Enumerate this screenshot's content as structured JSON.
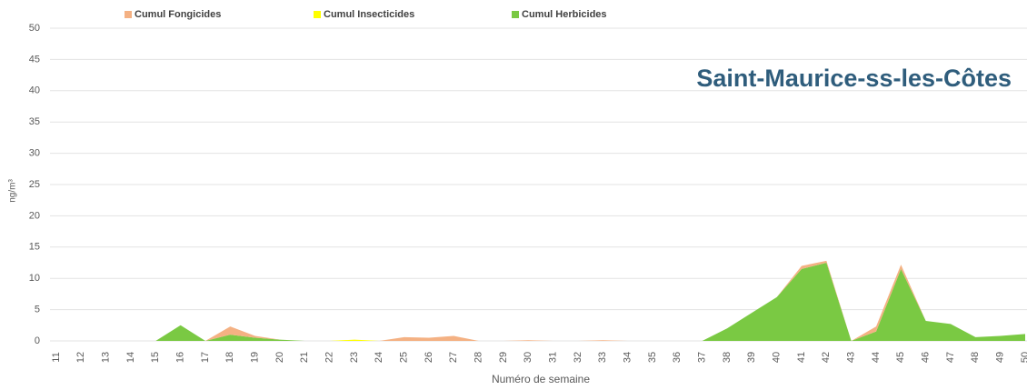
{
  "chart_data": {
    "type": "stacked_area",
    "annotation": "Saint-Maurice-ss-les-Côtes",
    "x_label": "Numéro de semaine",
    "y_label": "ng/m³",
    "categories": [
      "11",
      "12",
      "13",
      "14",
      "15",
      "16",
      "17",
      "18",
      "19",
      "20",
      "21",
      "22",
      "23",
      "24",
      "25",
      "26",
      "27",
      "28",
      "29",
      "30",
      "31",
      "32",
      "33",
      "34",
      "35",
      "36",
      "37",
      "38",
      "39",
      "40",
      "41",
      "42",
      "43",
      "44",
      "45",
      "46",
      "47",
      "48",
      "49",
      "50"
    ],
    "series": [
      {
        "name": "Cumul Fongicides",
        "color": "#f4b183",
        "values": [
          0,
          0,
          0,
          0,
          0,
          0,
          0,
          1.3,
          0.3,
          0,
          0,
          0,
          0,
          0,
          0.6,
          0.5,
          0.8,
          0,
          0,
          0.1,
          0,
          0,
          0.1,
          0,
          0,
          0,
          0,
          0,
          0,
          0,
          0.5,
          0.3,
          0,
          0.8,
          0.7,
          0,
          0,
          0,
          0,
          0
        ]
      },
      {
        "name": "Cumul Insecticides",
        "color": "#ffff00",
        "values": [
          0,
          0,
          0,
          0,
          0,
          0,
          0,
          0,
          0,
          0,
          0,
          0,
          0.2,
          0,
          0,
          0,
          0,
          0,
          0,
          0,
          0,
          0,
          0,
          0,
          0,
          0,
          0,
          0,
          0,
          0,
          0,
          0,
          0,
          0,
          0,
          0,
          0,
          0,
          0,
          0
        ]
      },
      {
        "name": "Cumul Herbicides",
        "color": "#7ac943",
        "values": [
          0,
          0,
          0,
          0,
          0,
          2.5,
          0,
          1,
          0.5,
          0.2,
          0,
          0,
          0,
          0,
          0,
          0,
          0,
          0,
          0,
          0,
          0,
          0,
          0,
          0,
          0,
          0,
          0,
          2,
          4.5,
          7,
          11.5,
          12.5,
          0,
          1.5,
          11.5,
          3.2,
          2.7,
          0.6,
          0.8,
          1.1
        ]
      }
    ],
    "ylim": [
      0,
      50
    ],
    "yticks": [
      0,
      5,
      10,
      15,
      20,
      25,
      30,
      35,
      40,
      45,
      50
    ],
    "grid": true
  }
}
